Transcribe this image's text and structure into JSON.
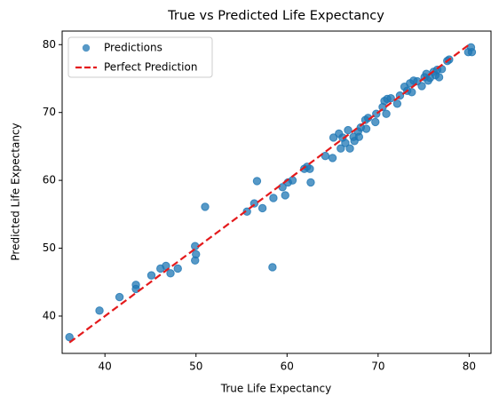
{
  "chart_data": {
    "type": "scatter",
    "title": "True vs Predicted Life Expectancy",
    "xlabel": "True Life Expectancy",
    "ylabel": "Predicted Life Expectancy",
    "xlim": [
      35.3,
      82.4
    ],
    "ylim": [
      34.5,
      82.0
    ],
    "xticks": [
      40,
      50,
      60,
      70,
      80
    ],
    "yticks": [
      40,
      50,
      60,
      70,
      80
    ],
    "grid": false,
    "legend": "upper left",
    "series": [
      {
        "name": "Predictions",
        "type": "scatter",
        "color": "#1f77b4",
        "x": [
          36.1,
          39.4,
          41.6,
          43.4,
          43.4,
          45.1,
          46.1,
          46.7,
          47.2,
          48.0,
          49.9,
          50.0,
          49.9,
          51.0,
          55.6,
          56.4,
          56.7,
          57.3,
          58.4,
          58.5,
          59.5,
          59.8,
          60.1,
          60.6,
          61.9,
          62.2,
          62.5,
          62.6,
          64.2,
          65.0,
          65.1,
          65.7,
          65.9,
          66.1,
          66.4,
          66.7,
          66.9,
          67.3,
          67.4,
          67.8,
          68.1,
          67.9,
          68.6,
          68.7,
          68.9,
          69.7,
          69.8,
          70.5,
          70.7,
          70.9,
          71.0,
          71.4,
          72.1,
          72.4,
          72.9,
          73.2,
          73.5,
          73.7,
          73.9,
          74.3,
          74.8,
          75.1,
          75.3,
          75.5,
          75.7,
          76.1,
          76.3,
          76.5,
          76.7,
          77.0,
          77.6,
          77.8,
          79.9,
          80.3,
          80.2
        ],
        "values": [
          36.9,
          40.8,
          42.8,
          44.6,
          44.0,
          46.0,
          47.0,
          47.4,
          46.3,
          47.0,
          50.3,
          49.1,
          48.2,
          56.1,
          55.4,
          56.6,
          59.9,
          55.9,
          47.2,
          57.4,
          59.0,
          57.8,
          59.7,
          60.0,
          61.7,
          62.0,
          61.7,
          59.7,
          63.6,
          63.3,
          66.3,
          66.9,
          64.7,
          66.3,
          65.5,
          67.4,
          64.7,
          66.4,
          65.8,
          67.2,
          67.8,
          66.4,
          68.9,
          67.6,
          69.2,
          68.6,
          69.8,
          70.8,
          71.7,
          69.8,
          72.0,
          72.1,
          71.3,
          72.5,
          73.8,
          73.2,
          74.3,
          73.0,
          74.7,
          74.6,
          73.9,
          75.2,
          75.7,
          74.7,
          75.1,
          76.0,
          75.5,
          76.3,
          75.2,
          76.4,
          77.6,
          77.8,
          78.9,
          78.9,
          79.6
        ]
      },
      {
        "name": "Perfect Prediction",
        "type": "line",
        "color": "#e41a1c",
        "dashed": true,
        "x": [
          36.1,
          80.2
        ],
        "values": [
          36.1,
          80.2
        ]
      }
    ]
  }
}
